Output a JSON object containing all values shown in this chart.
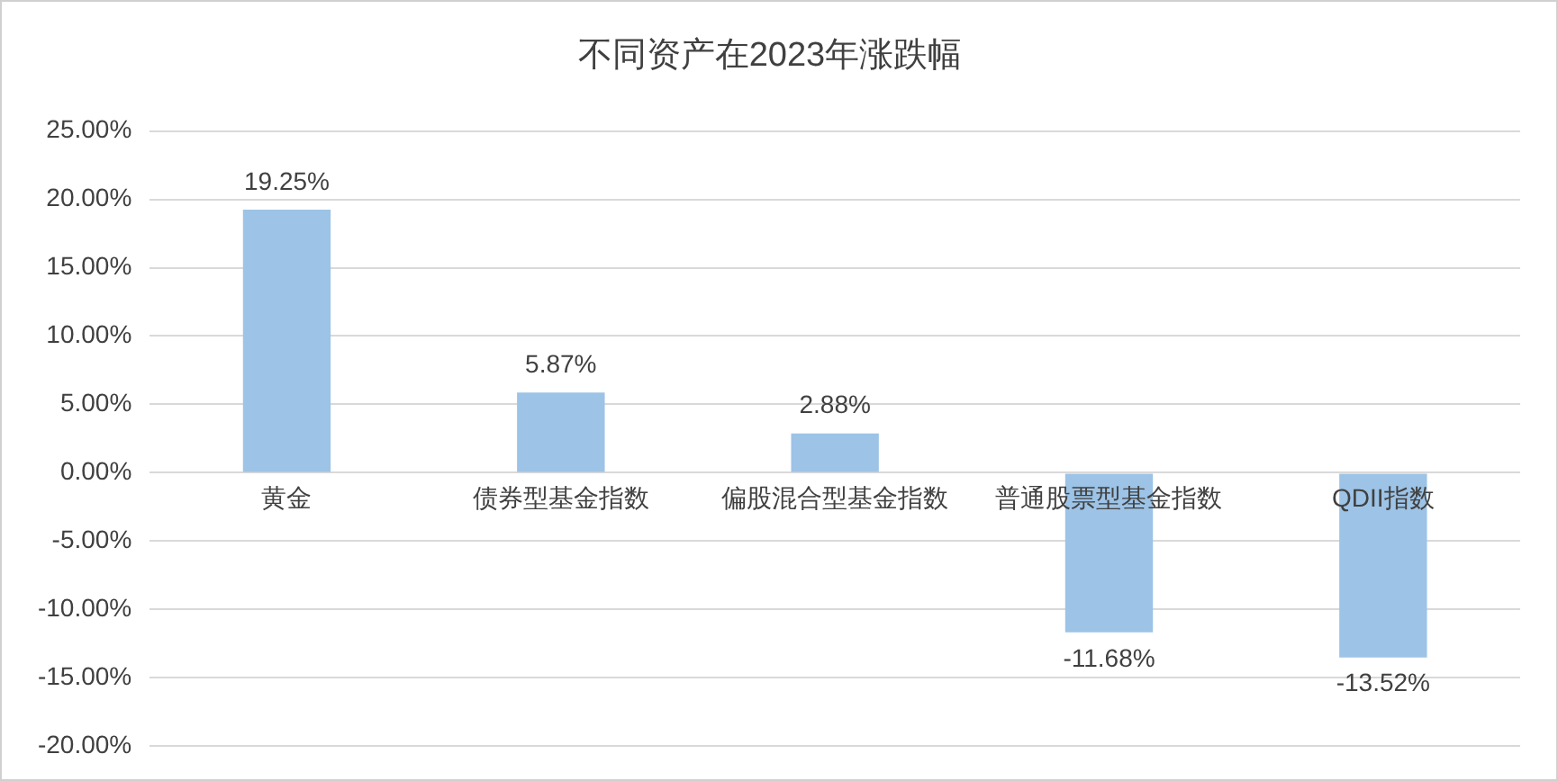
{
  "chart_data": {
    "type": "bar",
    "title": "不同资产在2023年涨跌幅",
    "categories": [
      "黄金",
      "债券型基金指数",
      "偏股混合型基金指数",
      "普通股票型基金指数",
      "QDII指数"
    ],
    "values": [
      19.25,
      5.87,
      2.88,
      -11.68,
      -13.52
    ],
    "value_labels": [
      "19.25%",
      "5.87%",
      "2.88%",
      "-11.68%",
      "-13.52%"
    ],
    "color": "#9dc3e6",
    "ylim": [
      -20,
      25
    ],
    "yticks": [
      {
        "value": -20,
        "label": "-20.00%"
      },
      {
        "value": -15,
        "label": "-15.00%"
      },
      {
        "value": -10,
        "label": "-10.00%"
      },
      {
        "value": -5,
        "label": "-5.00%"
      },
      {
        "value": 0,
        "label": "0.00%"
      },
      {
        "value": 5,
        "label": "5.00%"
      },
      {
        "value": 10,
        "label": "10.00%"
      },
      {
        "value": 15,
        "label": "15.00%"
      },
      {
        "value": 20,
        "label": "20.00%"
      },
      {
        "value": 25,
        "label": "25.00%"
      }
    ],
    "grid": "y",
    "legend": false
  }
}
